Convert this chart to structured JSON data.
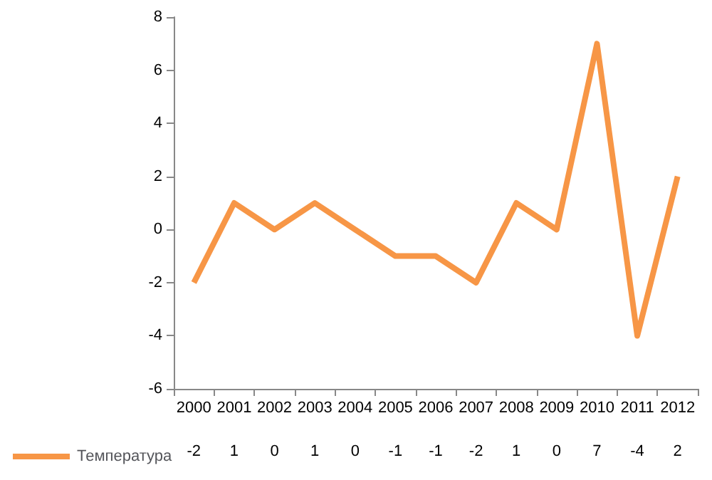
{
  "chart_data": {
    "type": "line",
    "categories": [
      "2000",
      "2001",
      "2002",
      "2003",
      "2004",
      "2005",
      "2006",
      "2007",
      "2008",
      "2009",
      "2010",
      "2011",
      "2012"
    ],
    "series": [
      {
        "name": "Температура",
        "color": "#f79646",
        "values": [
          -2,
          1,
          0,
          1,
          0,
          -1,
          -1,
          -2,
          1,
          0,
          7,
          -4,
          2
        ]
      }
    ],
    "ylim": [
      -6,
      8
    ],
    "yticks": [
      -6,
      -4,
      -2,
      0,
      2,
      4,
      6,
      8
    ],
    "grid": false,
    "legend": "bottom left",
    "data_labels": true,
    "marker": "none",
    "line_style": "solid"
  }
}
